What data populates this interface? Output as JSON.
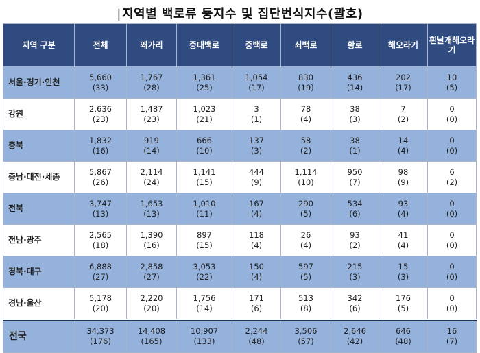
{
  "title_bar": "|",
  "title": "지역별 백로류 둥지수 및 집단번식지수(괄호)",
  "columns": [
    "지역 구분",
    "전체",
    "왜가리",
    "중대백로",
    "중백로",
    "쇠백로",
    "황로",
    "해오라기",
    "흰날개해오라기"
  ],
  "rows": [
    {
      "region": "서울·경기·인천",
      "cells": [
        [
          "5,660",
          "(33)"
        ],
        [
          "1,767",
          "(28)"
        ],
        [
          "1,361",
          "(25)"
        ],
        [
          "1,054",
          "(17)"
        ],
        [
          "830",
          "(19)"
        ],
        [
          "436",
          "(14)"
        ],
        [
          "202",
          "(17)"
        ],
        [
          "10",
          "(5)"
        ]
      ]
    },
    {
      "region": "강원",
      "cells": [
        [
          "2,636",
          "(23)"
        ],
        [
          "1,487",
          "(23)"
        ],
        [
          "1,023",
          "(21)"
        ],
        [
          "3",
          "(1)"
        ],
        [
          "78",
          "(4)"
        ],
        [
          "38",
          "(3)"
        ],
        [
          "7",
          "(2)"
        ],
        [
          "0",
          "(0)"
        ]
      ]
    },
    {
      "region": "충북",
      "cells": [
        [
          "1,832",
          "(16)"
        ],
        [
          "919",
          "(14)"
        ],
        [
          "666",
          "(10)"
        ],
        [
          "137",
          "(3)"
        ],
        [
          "58",
          "(2)"
        ],
        [
          "38",
          "(1)"
        ],
        [
          "14",
          "(4)"
        ],
        [
          "0",
          "(0)"
        ]
      ]
    },
    {
      "region": "충남·대전·세종",
      "cells": [
        [
          "5,867",
          "(26)"
        ],
        [
          "2,114",
          "(24)"
        ],
        [
          "1,141",
          "(15)"
        ],
        [
          "444",
          "(9)"
        ],
        [
          "1,114",
          "(10)"
        ],
        [
          "950",
          "(7)"
        ],
        [
          "98",
          "(9)"
        ],
        [
          "6",
          "(2)"
        ]
      ]
    },
    {
      "region": "전북",
      "cells": [
        [
          "3,747",
          "(13)"
        ],
        [
          "1,653",
          "(13)"
        ],
        [
          "1,010",
          "(11)"
        ],
        [
          "167",
          "(4)"
        ],
        [
          "290",
          "(5)"
        ],
        [
          "534",
          "(6)"
        ],
        [
          "93",
          "(4)"
        ],
        [
          "0",
          "(0)"
        ]
      ]
    },
    {
      "region": "전남·광주",
      "cells": [
        [
          "2,565",
          "(18)"
        ],
        [
          "1,390",
          "(16)"
        ],
        [
          "897",
          "(15)"
        ],
        [
          "118",
          "(4)"
        ],
        [
          "26",
          "(4)"
        ],
        [
          "93",
          "(2)"
        ],
        [
          "41",
          "(4)"
        ],
        [
          "0",
          "(0)"
        ]
      ]
    },
    {
      "region": "경북·대구",
      "cells": [
        [
          "6,888",
          "(27)"
        ],
        [
          "2,858",
          "(27)"
        ],
        [
          "3,053",
          "(22)"
        ],
        [
          "150",
          "(4)"
        ],
        [
          "597",
          "(5)"
        ],
        [
          "215",
          "(3)"
        ],
        [
          "15",
          "(3)"
        ],
        [
          "0",
          "(0)"
        ]
      ]
    },
    {
      "region": "경남·울산",
      "cells": [
        [
          "5,178",
          "(20)"
        ],
        [
          "2,220",
          "(20)"
        ],
        [
          "1,756",
          "(14)"
        ],
        [
          "171",
          "(6)"
        ],
        [
          "513",
          "(8)"
        ],
        [
          "342",
          "(6)"
        ],
        [
          "176",
          "(5)"
        ],
        [
          "0",
          "(0)"
        ]
      ]
    }
  ],
  "total": {
    "region": "전국",
    "cells": [
      [
        "34,373",
        "(176)"
      ],
      [
        "14,408",
        "(165)"
      ],
      [
        "10,907",
        "(133)"
      ],
      [
        "2,244",
        "(48)"
      ],
      [
        "3,506",
        "(57)"
      ],
      [
        "2,646",
        "(42)"
      ],
      [
        "646",
        "(48)"
      ],
      [
        "16",
        "(7)"
      ]
    ]
  },
  "colors": {
    "header_bg": "#2f4b80",
    "band": "#95b2dc"
  }
}
